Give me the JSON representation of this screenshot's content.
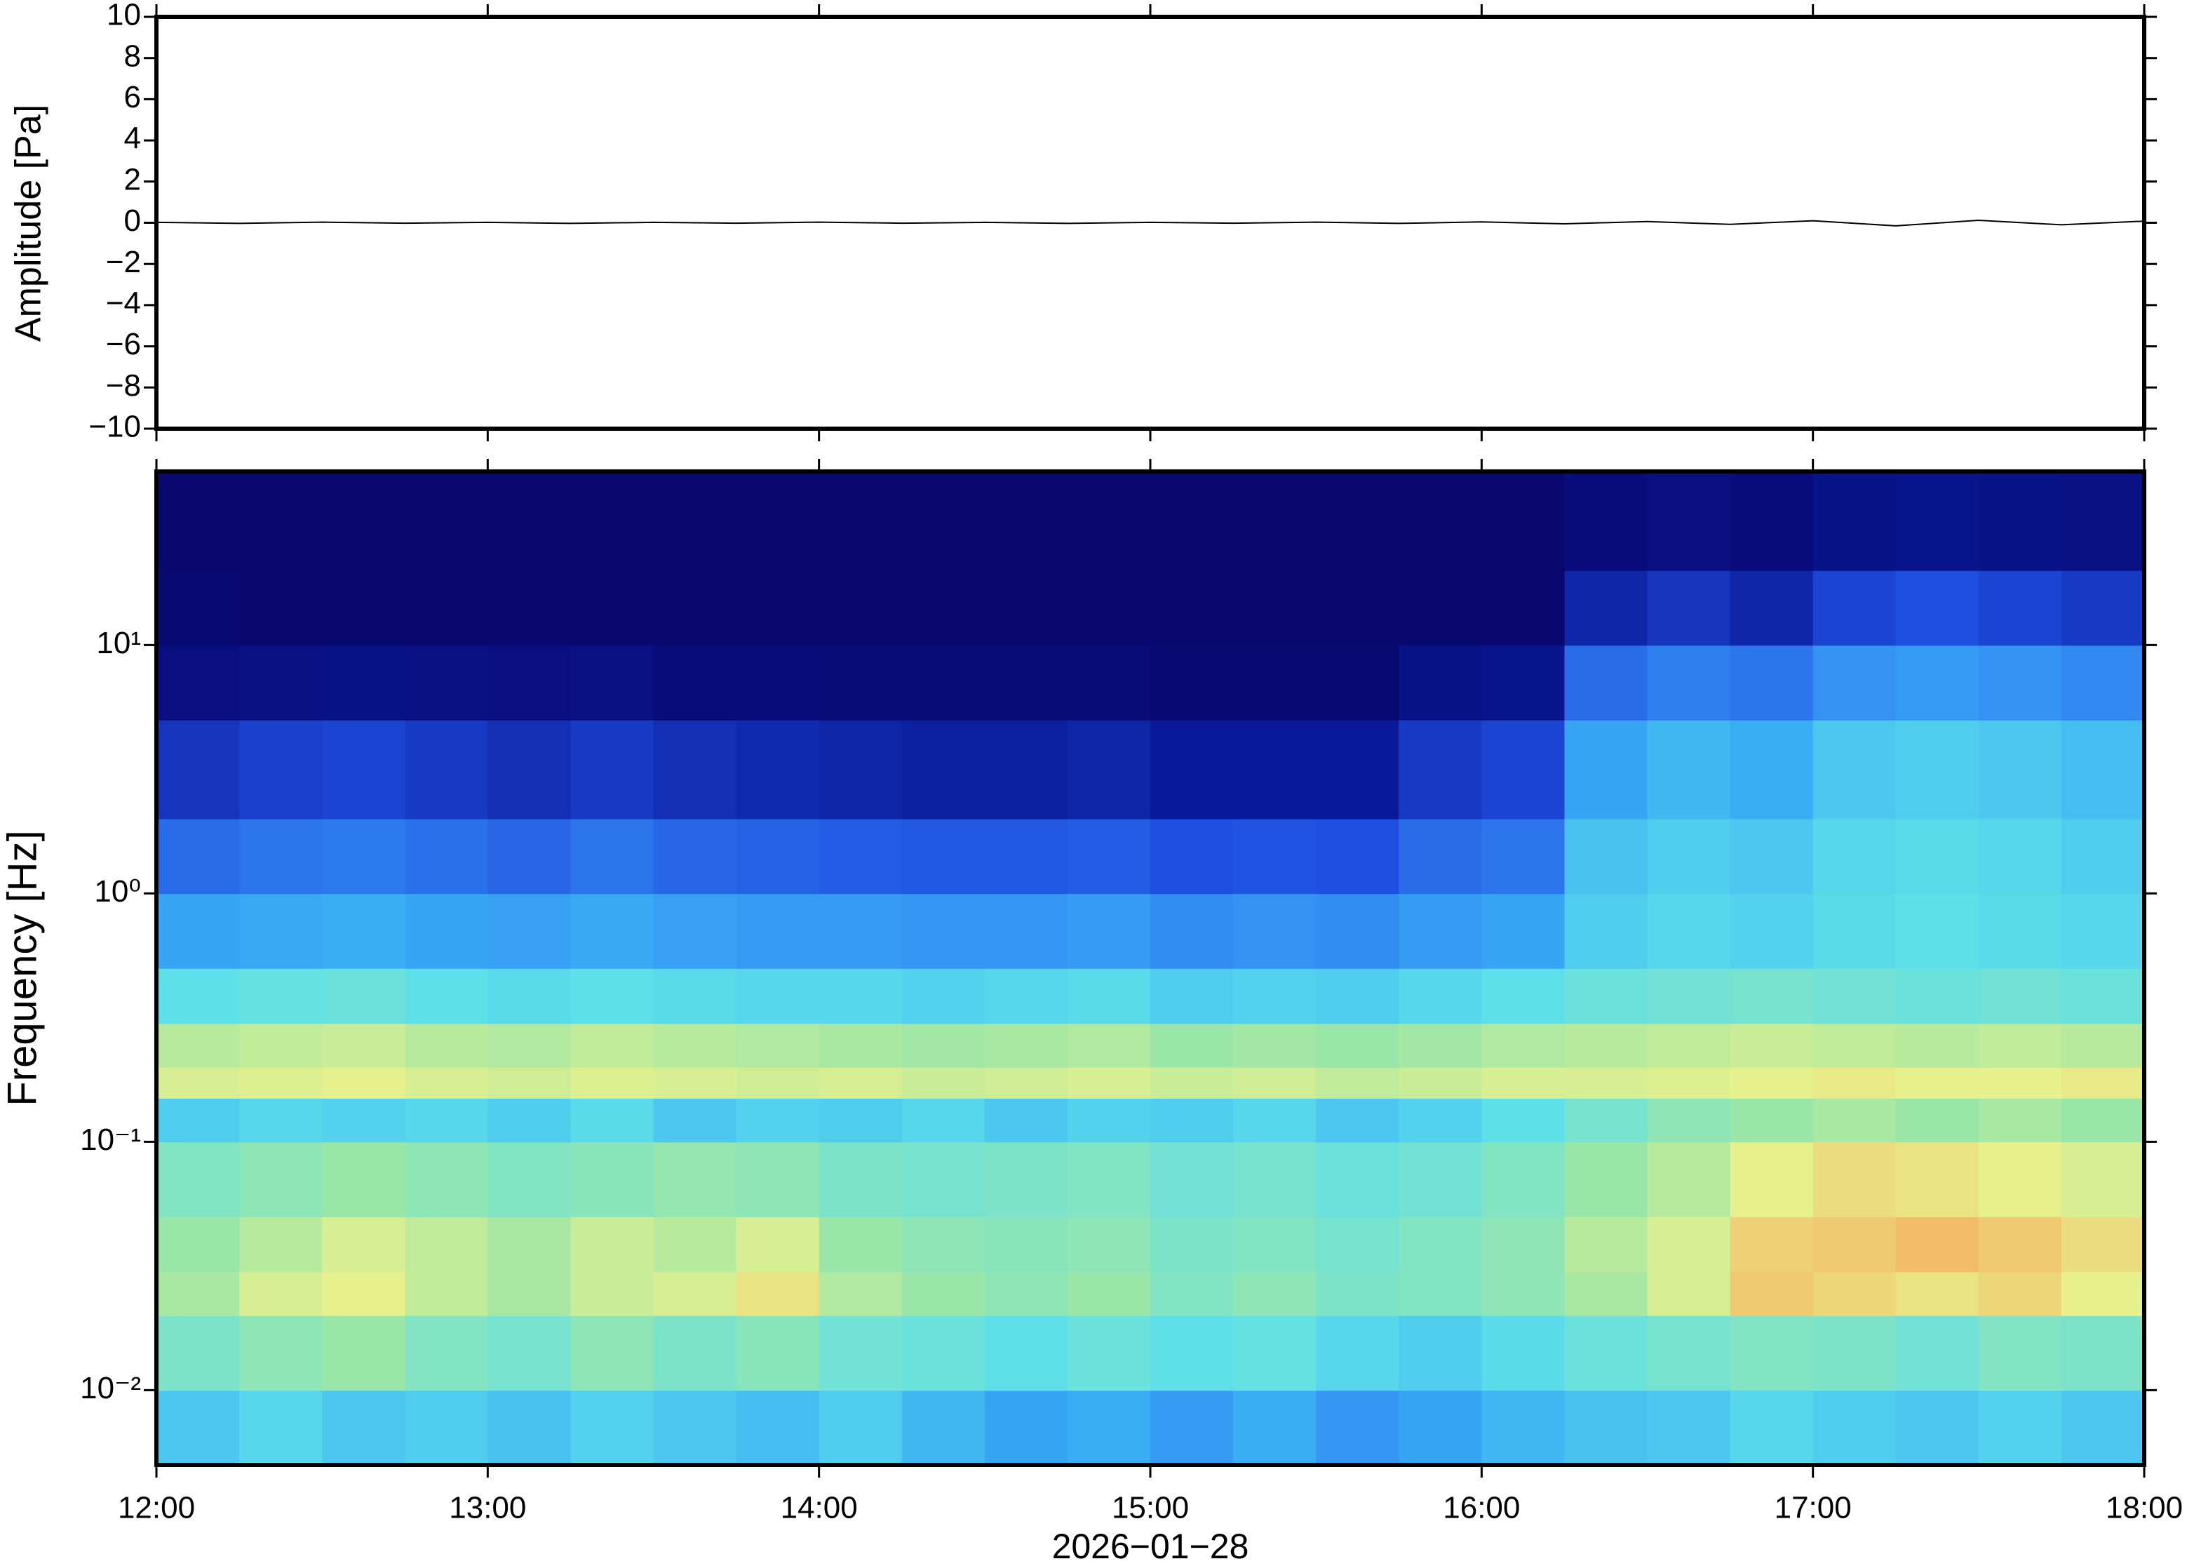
{
  "chart_data": [
    {
      "type": "line",
      "ylabel": "Amplitude [Pa]",
      "xlim": [
        "2026-01-28T12:00",
        "2026-01-28T18:00"
      ],
      "xticks": [
        "2026-01-28T12:00",
        "2026-01-28T13:00",
        "2026-01-28T14:00",
        "2026-01-28T15:00",
        "2026-01-28T16:00",
        "2026-01-28T17:00",
        "2026-01-28T18:00"
      ],
      "ylim": [
        -10,
        10
      ],
      "yticks": [
        {
          "value": -10,
          "label": "−10"
        },
        {
          "value": -8,
          "label": "−8"
        },
        {
          "value": -6,
          "label": "−6"
        },
        {
          "value": -4,
          "label": "−4"
        },
        {
          "value": -2,
          "label": "−2"
        },
        0,
        2,
        4,
        6,
        8,
        10
      ],
      "x": [
        "2026-01-28T12:00",
        "2026-01-28T12:15",
        "2026-01-28T12:30",
        "2026-01-28T12:45",
        "2026-01-28T13:00",
        "2026-01-28T13:15",
        "2026-01-28T13:30",
        "2026-01-28T13:45",
        "2026-01-28T14:00",
        "2026-01-28T14:15",
        "2026-01-28T14:30",
        "2026-01-28T14:45",
        "2026-01-28T15:00",
        "2026-01-28T15:15",
        "2026-01-28T15:30",
        "2026-01-28T15:45",
        "2026-01-28T16:00",
        "2026-01-28T16:15",
        "2026-01-28T16:30",
        "2026-01-28T16:45",
        "2026-01-28T17:00",
        "2026-01-28T17:15",
        "2026-01-28T17:30",
        "2026-01-28T17:45",
        "2026-01-28T18:00"
      ],
      "series": [
        {
          "color": "#000000",
          "values": [
            0.02,
            -0.03,
            0.03,
            -0.02,
            0.02,
            -0.03,
            0.02,
            -0.02,
            0.03,
            -0.02,
            0.02,
            -0.03,
            0.02,
            -0.02,
            0.03,
            -0.03,
            0.04,
            -0.05,
            0.06,
            -0.08,
            0.1,
            -0.15,
            0.12,
            -0.1,
            0.08
          ]
        }
      ]
    },
    {
      "type": "heatmap",
      "ylabel": "Frequency [Hz]",
      "xlabel": "2026−01−28",
      "log_y": true,
      "xlim": [
        "2026-01-28T12:00",
        "2026-01-28T18:00"
      ],
      "xticks": [
        {
          "value": "2026-01-28T12:00",
          "label": "12:00"
        },
        {
          "value": "2026-01-28T13:00",
          "label": "13:00"
        },
        {
          "value": "2026-01-28T14:00",
          "label": "14:00"
        },
        {
          "value": "2026-01-28T15:00",
          "label": "15:00"
        },
        {
          "value": "2026-01-28T16:00",
          "label": "16:00"
        },
        {
          "value": "2026-01-28T17:00",
          "label": "17:00"
        },
        {
          "value": "2026-01-28T18:00",
          "label": "18:00"
        }
      ],
      "ylim": [
        0.005,
        50
      ],
      "yticks": [
        {
          "value": 0.01,
          "label": "10⁻²"
        },
        {
          "value": 0.1,
          "label": "10⁻¹"
        },
        {
          "value": 1,
          "label": "10⁰"
        },
        {
          "value": 10,
          "label": "10¹"
        }
      ],
      "xbins": [
        "2026-01-28T12:00",
        "2026-01-28T12:15",
        "2026-01-28T12:30",
        "2026-01-28T12:45",
        "2026-01-28T13:00",
        "2026-01-28T13:15",
        "2026-01-28T13:30",
        "2026-01-28T13:45",
        "2026-01-28T14:00",
        "2026-01-28T14:15",
        "2026-01-28T14:30",
        "2026-01-28T14:45",
        "2026-01-28T15:00",
        "2026-01-28T15:15",
        "2026-01-28T15:30",
        "2026-01-28T15:45",
        "2026-01-28T16:00",
        "2026-01-28T16:15",
        "2026-01-28T16:30",
        "2026-01-28T16:45",
        "2026-01-28T17:00",
        "2026-01-28T17:15",
        "2026-01-28T17:30",
        "2026-01-28T17:45",
        "2026-01-28T18:00"
      ],
      "ybins": [
        0.005,
        0.01,
        0.02,
        0.03,
        0.05,
        0.1,
        0.15,
        0.2,
        0.3,
        0.5,
        1,
        2,
        5,
        10,
        20,
        50
      ],
      "zlim": [
        0,
        8
      ],
      "colormap": [
        "#08086e",
        "#0a1a9a",
        "#1f4fe0",
        "#2f7ff0",
        "#3aaef5",
        "#5fe0e8",
        "#9ae6a8",
        "#e6f08c",
        "#f5b060"
      ],
      "z": [
        [
          4.5,
          4.8,
          4.5,
          4.6,
          4.4,
          4.7,
          4.5,
          4.3,
          4.6,
          4.2,
          3.8,
          4.0,
          3.6,
          4.0,
          3.5,
          3.8,
          4.2,
          4.4,
          4.5,
          4.8,
          4.6,
          4.5,
          4.7,
          4.5
        ],
        [
          5.5,
          5.8,
          6.0,
          5.6,
          5.4,
          5.8,
          5.5,
          5.7,
          5.3,
          5.2,
          5.0,
          5.2,
          5.0,
          5.1,
          4.8,
          4.6,
          4.9,
          5.2,
          5.4,
          5.6,
          5.5,
          5.3,
          5.6,
          5.5
        ],
        [
          6.2,
          6.8,
          7.0,
          6.5,
          6.2,
          6.6,
          6.8,
          7.2,
          6.3,
          6.0,
          5.8,
          6.0,
          5.6,
          5.8,
          5.5,
          5.6,
          5.8,
          6.2,
          6.8,
          7.6,
          7.4,
          7.2,
          7.4,
          7.0
        ],
        [
          6.0,
          6.4,
          6.8,
          6.5,
          6.2,
          6.6,
          6.4,
          6.8,
          6.0,
          5.8,
          5.7,
          5.8,
          5.5,
          5.6,
          5.4,
          5.6,
          5.8,
          6.4,
          6.8,
          7.5,
          7.6,
          7.8,
          7.6,
          7.3
        ],
        [
          5.6,
          5.8,
          6.0,
          5.8,
          5.6,
          5.7,
          5.9,
          5.8,
          5.5,
          5.4,
          5.5,
          5.6,
          5.3,
          5.4,
          5.2,
          5.3,
          5.6,
          6.0,
          6.4,
          7.0,
          7.3,
          7.2,
          7.0,
          6.8
        ],
        [
          4.6,
          4.8,
          4.7,
          4.8,
          4.6,
          4.9,
          4.5,
          4.7,
          4.6,
          4.8,
          4.5,
          4.7,
          4.6,
          4.8,
          4.5,
          4.7,
          5.0,
          5.4,
          5.8,
          6.0,
          6.2,
          6.0,
          6.2,
          6.0
        ],
        [
          6.8,
          6.9,
          7.0,
          6.8,
          6.7,
          6.9,
          6.8,
          6.7,
          6.8,
          6.6,
          6.7,
          6.8,
          6.6,
          6.7,
          6.5,
          6.6,
          6.8,
          6.8,
          6.9,
          7.0,
          7.1,
          7.0,
          7.0,
          7.1
        ],
        [
          6.4,
          6.5,
          6.6,
          6.4,
          6.3,
          6.5,
          6.4,
          6.3,
          6.2,
          6.1,
          6.2,
          6.3,
          6.0,
          6.1,
          6.0,
          6.1,
          6.3,
          6.4,
          6.5,
          6.6,
          6.5,
          6.4,
          6.5,
          6.4
        ],
        [
          5.0,
          5.1,
          5.2,
          5.0,
          4.9,
          5.0,
          4.9,
          4.8,
          4.8,
          4.7,
          4.8,
          4.9,
          4.6,
          4.7,
          4.6,
          4.8,
          5.0,
          5.2,
          5.3,
          5.4,
          5.3,
          5.2,
          5.3,
          5.2
        ],
        [
          3.8,
          3.9,
          4.0,
          3.8,
          3.7,
          3.9,
          3.7,
          3.6,
          3.6,
          3.5,
          3.5,
          3.6,
          3.3,
          3.4,
          3.3,
          3.6,
          3.8,
          4.6,
          4.8,
          4.7,
          4.9,
          5.0,
          4.9,
          4.8
        ],
        [
          2.6,
          2.8,
          2.9,
          2.7,
          2.5,
          2.8,
          2.5,
          2.4,
          2.3,
          2.2,
          2.2,
          2.3,
          2.0,
          2.1,
          2.0,
          2.6,
          2.8,
          4.4,
          4.6,
          4.5,
          4.8,
          4.9,
          4.8,
          4.6
        ],
        [
          1.5,
          1.7,
          1.8,
          1.6,
          1.4,
          1.6,
          1.4,
          1.3,
          1.2,
          1.1,
          1.1,
          1.2,
          1.0,
          1.0,
          1.0,
          1.6,
          1.8,
          3.8,
          4.2,
          4.0,
          4.5,
          4.6,
          4.5,
          4.3
        ],
        [
          0.4,
          0.5,
          0.6,
          0.5,
          0.4,
          0.5,
          0.3,
          0.3,
          0.2,
          0.2,
          0.2,
          0.2,
          0.1,
          0.1,
          0.1,
          0.6,
          0.7,
          2.6,
          3.0,
          2.8,
          3.4,
          3.6,
          3.4,
          3.2
        ],
        [
          0.1,
          0,
          0,
          0,
          0,
          0,
          0,
          0,
          0,
          0,
          0,
          0,
          0,
          0,
          0,
          0,
          0,
          1.2,
          1.5,
          1.2,
          1.8,
          2.0,
          1.8,
          1.6
        ],
        [
          0,
          0,
          0,
          0,
          0,
          0,
          0,
          0,
          0,
          0,
          0,
          0,
          0,
          0,
          0,
          0,
          0,
          0.3,
          0.4,
          0.3,
          0.6,
          0.7,
          0.6,
          0.5
        ]
      ]
    }
  ]
}
